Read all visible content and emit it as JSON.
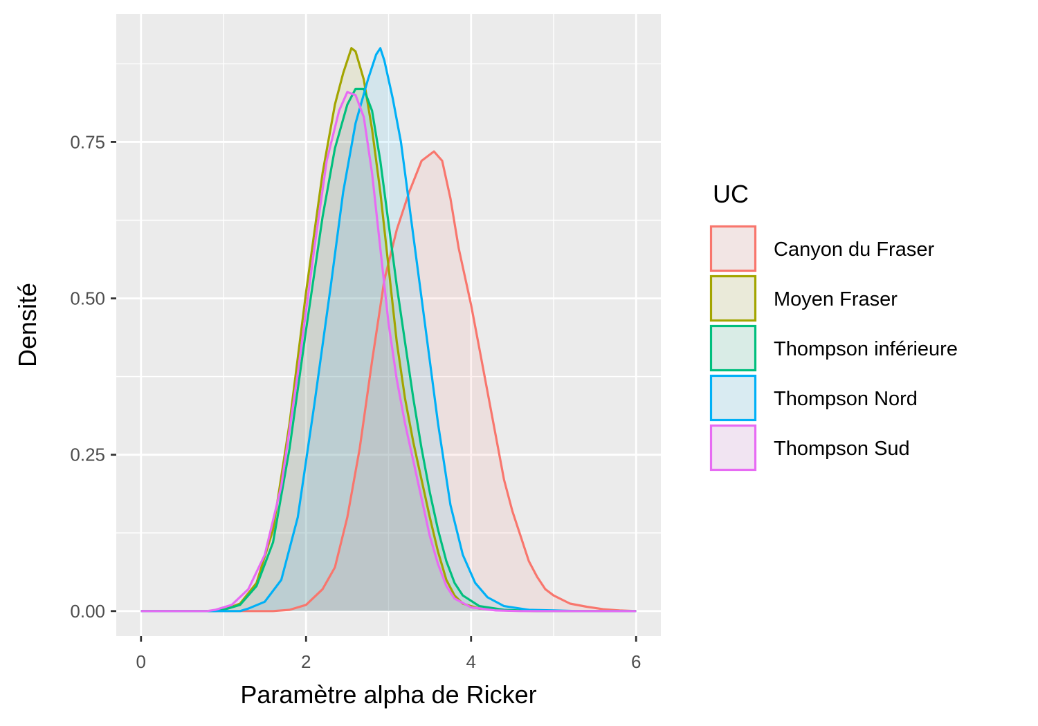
{
  "chart_data": {
    "type": "area",
    "xlabel": "Paramètre alpha de Ricker",
    "ylabel": "Densité",
    "xlim": [
      -0.3,
      6.3
    ],
    "ylim": [
      -0.04,
      0.955
    ],
    "x_ticks": [
      0,
      2,
      4,
      6
    ],
    "x_tick_labels": [
      "0",
      "2",
      "4",
      "6"
    ],
    "y_ticks": [
      0,
      0.25,
      0.5,
      0.75
    ],
    "y_tick_labels": [
      "0.00",
      "0.25",
      "0.50",
      "0.75"
    ],
    "grid": true,
    "legend": {
      "title": "UC",
      "position": "right"
    },
    "series": [
      {
        "name": "Canyon du Fraser",
        "color": "#F8766D",
        "points": [
          [
            0,
            0
          ],
          [
            1.6,
            0
          ],
          [
            1.8,
            0.002
          ],
          [
            2.0,
            0.01
          ],
          [
            2.2,
            0.035
          ],
          [
            2.35,
            0.07
          ],
          [
            2.5,
            0.15
          ],
          [
            2.65,
            0.26
          ],
          [
            2.8,
            0.4
          ],
          [
            2.95,
            0.53
          ],
          [
            3.1,
            0.61
          ],
          [
            3.25,
            0.67
          ],
          [
            3.4,
            0.72
          ],
          [
            3.55,
            0.735
          ],
          [
            3.65,
            0.72
          ],
          [
            3.75,
            0.66
          ],
          [
            3.85,
            0.58
          ],
          [
            4.0,
            0.49
          ],
          [
            4.1,
            0.42
          ],
          [
            4.2,
            0.35
          ],
          [
            4.3,
            0.28
          ],
          [
            4.4,
            0.21
          ],
          [
            4.5,
            0.16
          ],
          [
            4.6,
            0.12
          ],
          [
            4.7,
            0.08
          ],
          [
            4.8,
            0.055
          ],
          [
            4.9,
            0.035
          ],
          [
            5.0,
            0.025
          ],
          [
            5.2,
            0.012
          ],
          [
            5.4,
            0.007
          ],
          [
            5.6,
            0.003
          ],
          [
            5.8,
            0.001
          ],
          [
            6.0,
            0
          ]
        ]
      },
      {
        "name": "Moyen Fraser",
        "color": "#A3A500",
        "points": [
          [
            0,
            0
          ],
          [
            0.9,
            0
          ],
          [
            1.0,
            0.002
          ],
          [
            1.2,
            0.012
          ],
          [
            1.4,
            0.045
          ],
          [
            1.6,
            0.13
          ],
          [
            1.8,
            0.3
          ],
          [
            2.0,
            0.51
          ],
          [
            2.2,
            0.7
          ],
          [
            2.35,
            0.81
          ],
          [
            2.45,
            0.86
          ],
          [
            2.55,
            0.9
          ],
          [
            2.6,
            0.895
          ],
          [
            2.7,
            0.85
          ],
          [
            2.8,
            0.77
          ],
          [
            2.9,
            0.67
          ],
          [
            3.0,
            0.55
          ],
          [
            3.1,
            0.43
          ],
          [
            3.2,
            0.34
          ],
          [
            3.3,
            0.27
          ],
          [
            3.4,
            0.21
          ],
          [
            3.5,
            0.15
          ],
          [
            3.6,
            0.095
          ],
          [
            3.7,
            0.05
          ],
          [
            3.8,
            0.025
          ],
          [
            3.9,
            0.012
          ],
          [
            4.1,
            0.004
          ],
          [
            4.4,
            0.001
          ],
          [
            4.8,
            0
          ],
          [
            6.0,
            0
          ]
        ]
      },
      {
        "name": "Thompson inférieure",
        "color": "#00BF7D",
        "points": [
          [
            0,
            0
          ],
          [
            0.9,
            0
          ],
          [
            1.0,
            0.002
          ],
          [
            1.2,
            0.01
          ],
          [
            1.4,
            0.04
          ],
          [
            1.6,
            0.11
          ],
          [
            1.8,
            0.26
          ],
          [
            2.0,
            0.45
          ],
          [
            2.2,
            0.63
          ],
          [
            2.35,
            0.74
          ],
          [
            2.5,
            0.81
          ],
          [
            2.6,
            0.835
          ],
          [
            2.7,
            0.835
          ],
          [
            2.8,
            0.8
          ],
          [
            2.9,
            0.72
          ],
          [
            3.0,
            0.62
          ],
          [
            3.1,
            0.52
          ],
          [
            3.2,
            0.43
          ],
          [
            3.3,
            0.34
          ],
          [
            3.4,
            0.26
          ],
          [
            3.5,
            0.19
          ],
          [
            3.6,
            0.13
          ],
          [
            3.7,
            0.08
          ],
          [
            3.8,
            0.045
          ],
          [
            3.9,
            0.025
          ],
          [
            4.1,
            0.008
          ],
          [
            4.4,
            0.002
          ],
          [
            4.8,
            0
          ],
          [
            6.0,
            0
          ]
        ]
      },
      {
        "name": "Thompson Nord",
        "color": "#00B0F6",
        "points": [
          [
            0,
            0
          ],
          [
            1.2,
            0
          ],
          [
            1.3,
            0.004
          ],
          [
            1.5,
            0.015
          ],
          [
            1.7,
            0.05
          ],
          [
            1.9,
            0.15
          ],
          [
            2.1,
            0.33
          ],
          [
            2.3,
            0.52
          ],
          [
            2.45,
            0.67
          ],
          [
            2.6,
            0.78
          ],
          [
            2.75,
            0.85
          ],
          [
            2.85,
            0.89
          ],
          [
            2.9,
            0.9
          ],
          [
            2.95,
            0.88
          ],
          [
            3.05,
            0.82
          ],
          [
            3.15,
            0.75
          ],
          [
            3.3,
            0.6
          ],
          [
            3.45,
            0.45
          ],
          [
            3.6,
            0.3
          ],
          [
            3.75,
            0.17
          ],
          [
            3.9,
            0.09
          ],
          [
            4.05,
            0.045
          ],
          [
            4.2,
            0.022
          ],
          [
            4.4,
            0.008
          ],
          [
            4.7,
            0.002
          ],
          [
            5.0,
            0.001
          ],
          [
            5.3,
            0
          ],
          [
            6.0,
            0
          ]
        ]
      },
      {
        "name": "Thompson Sud",
        "color": "#E76BF3",
        "points": [
          [
            0,
            0
          ],
          [
            0.8,
            0
          ],
          [
            0.9,
            0.002
          ],
          [
            1.1,
            0.01
          ],
          [
            1.3,
            0.035
          ],
          [
            1.5,
            0.09
          ],
          [
            1.7,
            0.2
          ],
          [
            1.9,
            0.38
          ],
          [
            2.1,
            0.58
          ],
          [
            2.25,
            0.72
          ],
          [
            2.4,
            0.8
          ],
          [
            2.5,
            0.83
          ],
          [
            2.6,
            0.825
          ],
          [
            2.7,
            0.79
          ],
          [
            2.8,
            0.7
          ],
          [
            2.9,
            0.58
          ],
          [
            3.0,
            0.46
          ],
          [
            3.1,
            0.37
          ],
          [
            3.2,
            0.3
          ],
          [
            3.3,
            0.24
          ],
          [
            3.4,
            0.18
          ],
          [
            3.5,
            0.12
          ],
          [
            3.6,
            0.075
          ],
          [
            3.7,
            0.04
          ],
          [
            3.8,
            0.02
          ],
          [
            4.0,
            0.006
          ],
          [
            4.3,
            0.001
          ],
          [
            4.6,
            0
          ],
          [
            6.0,
            0
          ]
        ]
      }
    ]
  }
}
